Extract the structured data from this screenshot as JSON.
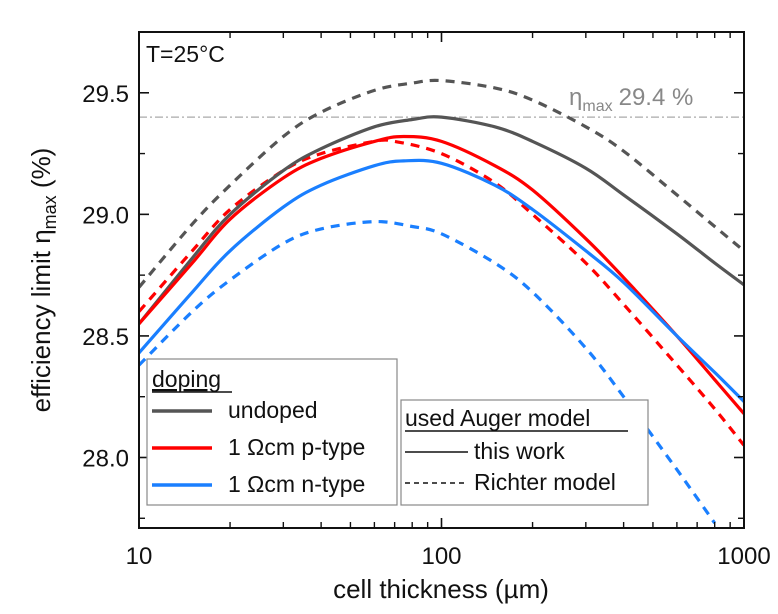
{
  "chart_data": {
    "type": "line",
    "title": "",
    "annotation_temp": "T=25°C",
    "annotation_max": {
      "symbol": "η",
      "sub": "max",
      "text": "29.4 %",
      "value": 29.4
    },
    "xlabel": "cell thickness (µm)",
    "ylabel": {
      "main": "efficiency limit η",
      "sub": "max",
      "tail": " (%)"
    },
    "xscale": "log",
    "xlim": [
      10,
      1000
    ],
    "ylim": [
      27.71,
      29.75
    ],
    "xticks": [
      10,
      100,
      1000
    ],
    "xtick_labels": [
      "10",
      "100",
      "1000"
    ],
    "yticks": [
      28.0,
      28.5,
      29.0,
      29.5
    ],
    "ytick_labels": [
      "28.0",
      "28.5",
      "29.0",
      "29.5"
    ],
    "grid": false,
    "reference_line": {
      "y": 29.4,
      "style": "dash-dot",
      "color": "#aaaaaa"
    },
    "colors": {
      "undoped": "#555555",
      "p_type": "#ff0000",
      "n_type": "#1a7fff"
    },
    "series": [
      {
        "name": "undoped (this work)",
        "doping": "undoped",
        "model": "this work",
        "color": "#555555",
        "dashed": false,
        "x": [
          10,
          15,
          20,
          30,
          40,
          60,
          80,
          100,
          150,
          200,
          300,
          400,
          600,
          800,
          1000
        ],
        "y": [
          28.55,
          28.82,
          29.0,
          29.18,
          29.27,
          29.36,
          29.39,
          29.4,
          29.36,
          29.3,
          29.19,
          29.08,
          28.92,
          28.8,
          28.71
        ]
      },
      {
        "name": "undoped (Richter model)",
        "doping": "undoped",
        "model": "Richter model",
        "color": "#555555",
        "dashed": true,
        "x": [
          10,
          15,
          20,
          30,
          40,
          60,
          80,
          100,
          150,
          200,
          300,
          400,
          600,
          800,
          1000
        ],
        "y": [
          28.7,
          28.96,
          29.12,
          29.32,
          29.42,
          29.51,
          29.54,
          29.55,
          29.52,
          29.47,
          29.36,
          29.26,
          29.08,
          28.95,
          28.85
        ]
      },
      {
        "name": "1 Ωcm p-type (this work)",
        "doping": "1 Ωcm p-type",
        "model": "this work",
        "color": "#ff0000",
        "dashed": false,
        "x": [
          10,
          15,
          20,
          30,
          40,
          60,
          75,
          100,
          150,
          200,
          300,
          400,
          600,
          800,
          1000
        ],
        "y": [
          28.55,
          28.8,
          28.98,
          29.15,
          29.23,
          29.3,
          29.32,
          29.3,
          29.2,
          29.1,
          28.9,
          28.74,
          28.5,
          28.32,
          28.18
        ]
      },
      {
        "name": "1 Ωcm p-type (Richter model)",
        "doping": "1 Ωcm p-type",
        "model": "Richter model",
        "color": "#ff0000",
        "dashed": true,
        "x": [
          10,
          15,
          20,
          30,
          40,
          60,
          70,
          100,
          150,
          200,
          300,
          400,
          600,
          800,
          1000
        ],
        "y": [
          28.6,
          28.85,
          29.02,
          29.18,
          29.25,
          29.3,
          29.3,
          29.25,
          29.13,
          29.0,
          28.8,
          28.63,
          28.38,
          28.2,
          28.05
        ]
      },
      {
        "name": "1 Ωcm n-type (this work)",
        "doping": "1 Ωcm n-type",
        "model": "this work",
        "color": "#1a7fff",
        "dashed": false,
        "x": [
          10,
          15,
          20,
          30,
          40,
          60,
          75,
          100,
          150,
          200,
          300,
          400,
          600,
          800,
          1000
        ],
        "y": [
          28.43,
          28.68,
          28.85,
          29.03,
          29.12,
          29.2,
          29.22,
          29.21,
          29.12,
          29.02,
          28.85,
          28.72,
          28.5,
          28.35,
          28.23
        ]
      },
      {
        "name": "1 Ωcm n-type (Richter model)",
        "doping": "1 Ωcm n-type",
        "model": "Richter model",
        "color": "#1a7fff",
        "dashed": true,
        "x": [
          10,
          15,
          20,
          30,
          40,
          60,
          80,
          100,
          150,
          200,
          300,
          400,
          600,
          800
        ],
        "y": [
          28.38,
          28.6,
          28.73,
          28.88,
          28.94,
          28.97,
          28.95,
          28.92,
          28.8,
          28.68,
          28.45,
          28.25,
          27.95,
          27.73
        ]
      }
    ],
    "legend_doping": {
      "title": "doping",
      "entries": [
        {
          "label": "undoped",
          "color": "#555555"
        },
        {
          "label": "1 Ωcm p-type",
          "color": "#ff0000"
        },
        {
          "label": "1 Ωcm n-type",
          "color": "#1a7fff"
        }
      ],
      "placement": "bottom-left"
    },
    "legend_model": {
      "title": "used Auger model",
      "entries": [
        {
          "label": "this work",
          "style": "solid"
        },
        {
          "label": "Richter model",
          "style": "dashed"
        }
      ],
      "placement": "bottom-center"
    }
  }
}
